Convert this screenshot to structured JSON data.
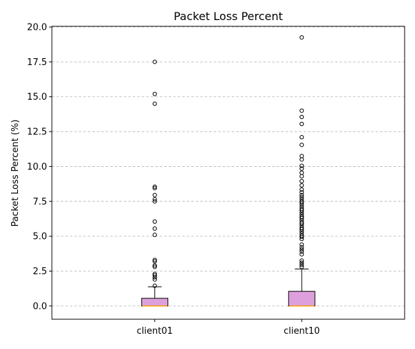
{
  "chart_data": {
    "type": "box",
    "title": "Packet Loss Percent",
    "xlabel": "",
    "ylabel": "Packet Loss Percent (%)",
    "ylim": [
      -0.95,
      20.05
    ],
    "yticks": [
      0.0,
      2.5,
      5.0,
      7.5,
      10.0,
      12.5,
      15.0,
      17.5,
      20.0
    ],
    "ytick_labels": [
      "0.0",
      "2.5",
      "5.0",
      "7.5",
      "10.0",
      "12.5",
      "15.0",
      "17.5",
      "20.0"
    ],
    "grid": "y-dashed",
    "colors": {
      "box_fill": "#dda0dd",
      "median": "#ffa500"
    },
    "categories": [
      "client01",
      "client10"
    ],
    "boxes": [
      {
        "name": "client01",
        "min": 0.0,
        "q1": 0.0,
        "median": 0.0,
        "q3": 0.55,
        "max": 1.38,
        "fliers": [
          1.45,
          1.9,
          2.05,
          2.2,
          2.3,
          2.8,
          2.9,
          3.2,
          3.3,
          5.1,
          5.55,
          6.05,
          7.5,
          7.65,
          7.95,
          8.45,
          8.55,
          14.5,
          15.2,
          17.5
        ]
      },
      {
        "name": "client10",
        "min": 0.0,
        "q1": 0.0,
        "median": 0.0,
        "q3": 1.05,
        "max": 2.65,
        "fliers": [
          2.8,
          2.95,
          3.1,
          3.25,
          3.7,
          3.9,
          4.05,
          4.2,
          4.4,
          4.8,
          4.95,
          5.05,
          5.2,
          5.35,
          5.5,
          5.6,
          5.75,
          5.9,
          6.0,
          6.15,
          6.3,
          6.4,
          6.55,
          6.7,
          6.85,
          6.95,
          7.1,
          7.25,
          7.4,
          7.5,
          7.65,
          7.8,
          7.95,
          8.15,
          8.35,
          8.65,
          8.95,
          9.3,
          9.55,
          9.85,
          10.05,
          10.5,
          10.75,
          11.55,
          12.1,
          13.05,
          13.55,
          14.0,
          19.25
        ]
      }
    ]
  }
}
